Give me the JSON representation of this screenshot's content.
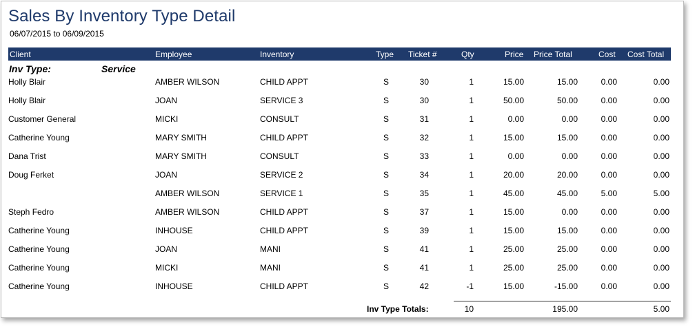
{
  "report": {
    "title": "Sales By Inventory Type Detail",
    "date_range": "06/07/2015 to 06/09/2015"
  },
  "columns": {
    "client": "Client",
    "employee": "Employee",
    "inventory": "Inventory",
    "type": "Type",
    "ticket": "Ticket #",
    "qty": "Qty",
    "price": "Price",
    "price_total": "Price Total",
    "cost": "Cost",
    "cost_total": "Cost Total"
  },
  "group": {
    "label": "Inv Type:",
    "value": "Service"
  },
  "rows": [
    {
      "client": "Holly Blair",
      "employee": "AMBER WILSON",
      "inventory": "CHILD APPT",
      "type": "S",
      "ticket": "30",
      "qty": "1",
      "price": "15.00",
      "price_total": "15.00",
      "cost": "0.00",
      "cost_total": "0.00"
    },
    {
      "client": "Holly Blair",
      "employee": "JOAN",
      "inventory": "SERVICE 3",
      "type": "S",
      "ticket": "30",
      "qty": "1",
      "price": "50.00",
      "price_total": "50.00",
      "cost": "0.00",
      "cost_total": "0.00"
    },
    {
      "client": "Customer General",
      "employee": "MICKI",
      "inventory": "CONSULT",
      "type": "S",
      "ticket": "31",
      "qty": "1",
      "price": "0.00",
      "price_total": "0.00",
      "cost": "0.00",
      "cost_total": "0.00"
    },
    {
      "client": "Catherine Young",
      "employee": "MARY SMITH",
      "inventory": "CHILD APPT",
      "type": "S",
      "ticket": "32",
      "qty": "1",
      "price": "15.00",
      "price_total": "15.00",
      "cost": "0.00",
      "cost_total": "0.00"
    },
    {
      "client": "Dana Trist",
      "employee": "MARY SMITH",
      "inventory": "CONSULT",
      "type": "S",
      "ticket": "33",
      "qty": "1",
      "price": "0.00",
      "price_total": "0.00",
      "cost": "0.00",
      "cost_total": "0.00"
    },
    {
      "client": "Doug Ferket",
      "employee": "JOAN",
      "inventory": "SERVICE 2",
      "type": "S",
      "ticket": "34",
      "qty": "1",
      "price": "20.00",
      "price_total": "20.00",
      "cost": "0.00",
      "cost_total": "0.00"
    },
    {
      "client": "",
      "employee": "AMBER WILSON",
      "inventory": "SERVICE 1",
      "type": "S",
      "ticket": "35",
      "qty": "1",
      "price": "45.00",
      "price_total": "45.00",
      "cost": "5.00",
      "cost_total": "5.00"
    },
    {
      "client": "Steph Fedro",
      "employee": "AMBER WILSON",
      "inventory": "CHILD APPT",
      "type": "S",
      "ticket": "37",
      "qty": "1",
      "price": "15.00",
      "price_total": "0.00",
      "cost": "0.00",
      "cost_total": "0.00"
    },
    {
      "client": "Catherine Young",
      "employee": "INHOUSE",
      "inventory": "CHILD APPT",
      "type": "S",
      "ticket": "39",
      "qty": "1",
      "price": "15.00",
      "price_total": "15.00",
      "cost": "0.00",
      "cost_total": "0.00"
    },
    {
      "client": "Catherine Young",
      "employee": "JOAN",
      "inventory": "MANI",
      "type": "S",
      "ticket": "41",
      "qty": "1",
      "price": "25.00",
      "price_total": "25.00",
      "cost": "0.00",
      "cost_total": "0.00"
    },
    {
      "client": "Catherine Young",
      "employee": "MICKI",
      "inventory": "MANI",
      "type": "S",
      "ticket": "41",
      "qty": "1",
      "price": "25.00",
      "price_total": "25.00",
      "cost": "0.00",
      "cost_total": "0.00"
    },
    {
      "client": "Catherine Young",
      "employee": "INHOUSE",
      "inventory": "CHILD APPT",
      "type": "S",
      "ticket": "42",
      "qty": "-1",
      "price": "15.00",
      "price_total": "-15.00",
      "cost": "0.00",
      "cost_total": "0.00"
    }
  ],
  "totals": {
    "label": "Inv Type  Totals:",
    "qty": "10",
    "price_total": "195.00",
    "cost_total": "5.00"
  }
}
